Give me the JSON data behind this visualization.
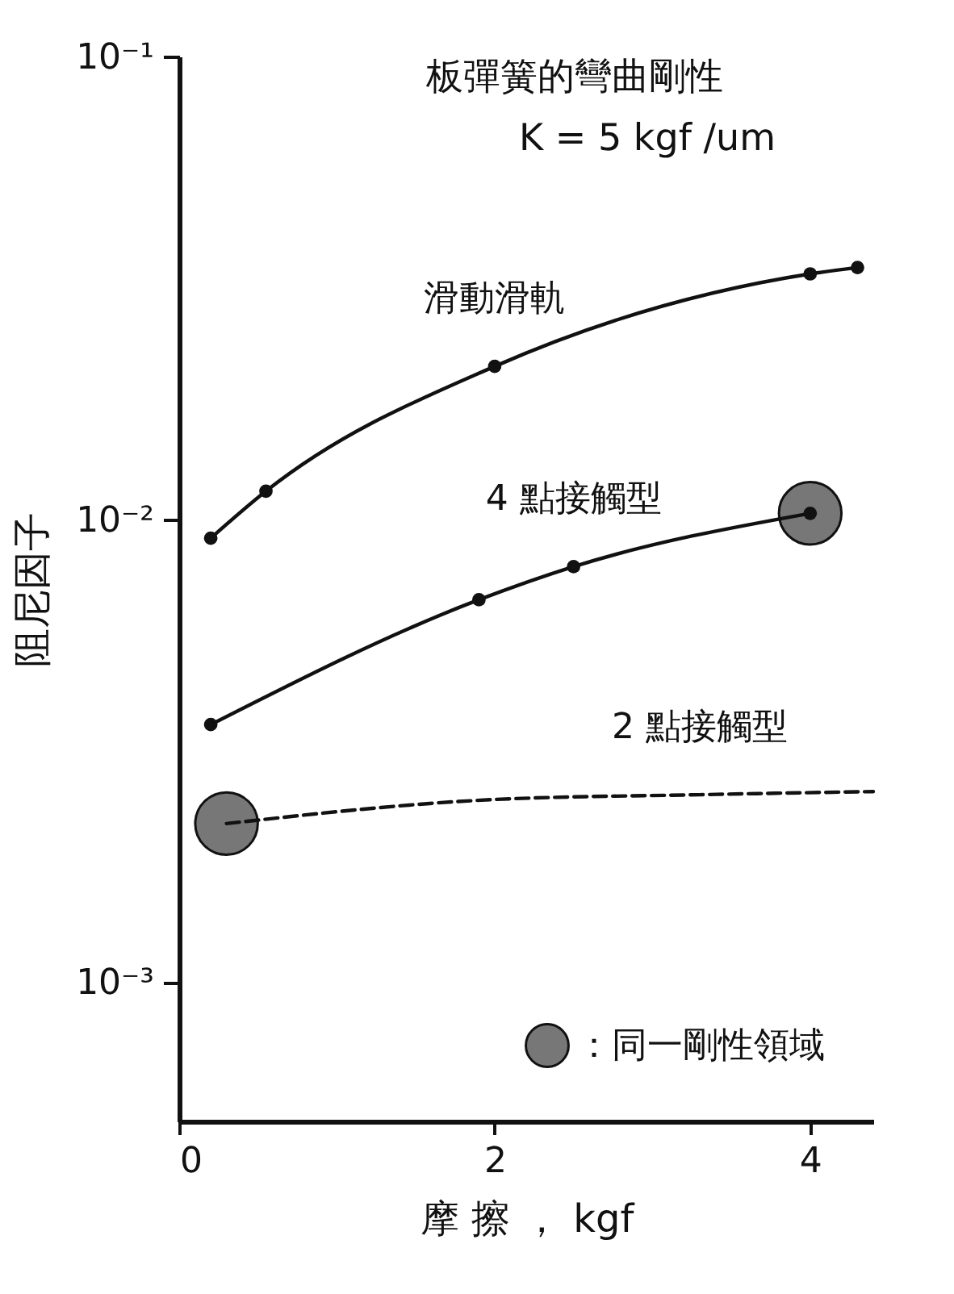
{
  "chart_data": {
    "type": "line",
    "title": "板彈簧的彎曲剛性",
    "subtitle": "K = 5 kgf /um",
    "xlabel": "摩 擦 ， kgf",
    "ylabel": "阻尼因子",
    "log": "y",
    "xlim": [
      0,
      4.4
    ],
    "xticks": [
      0,
      2,
      4
    ],
    "ylim": [
      0.0005,
      0.1
    ],
    "yticks": [
      {
        "value": 0.1,
        "label": "10⁻¹"
      },
      {
        "value": 0.01,
        "label": "10⁻²"
      },
      {
        "value": 0.001,
        "label": "10⁻³"
      }
    ],
    "grid": false,
    "legend": "bottom right",
    "series": [
      {
        "name": "滑動滑軌",
        "color": "#111111",
        "marker": "circle",
        "x": [
          0.2,
          0.55,
          2,
          4,
          4.3
        ],
        "values": [
          0.0091,
          0.0115,
          0.0214,
          0.0339,
          0.035
        ]
      },
      {
        "name": "4 點接觸型",
        "color": "#111111",
        "marker": "circle",
        "x": [
          0.2,
          1.9,
          2.5,
          4
        ],
        "values": [
          0.0036,
          0.0067,
          0.0079,
          0.0103
        ]
      },
      {
        "name": "2 點接觸型",
        "color": "#111111",
        "marker": "none",
        "line_style": "dashed",
        "x": [
          0.3,
          2,
          3.3,
          4.4
        ],
        "values": [
          0.0022,
          0.00248,
          0.00254,
          0.00258
        ]
      },
      {
        "name": "：同一剛性領域",
        "type": "scatter",
        "color": "#777777",
        "marker": "circle",
        "x": [
          0.3,
          4
        ],
        "values": [
          0.0022,
          0.0103
        ]
      }
    ]
  }
}
